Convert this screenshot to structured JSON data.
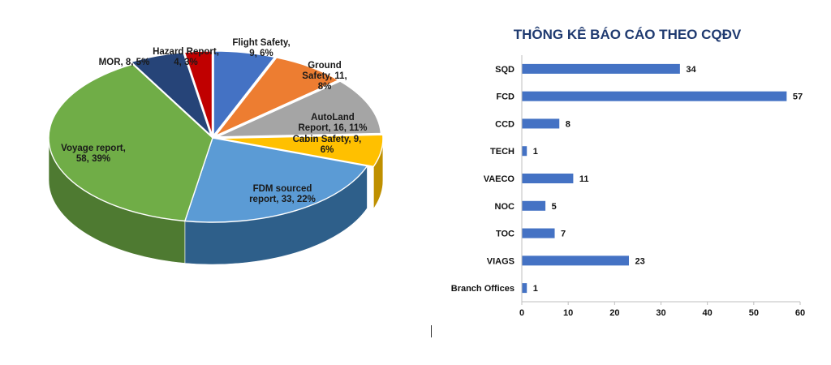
{
  "chart_data": [
    {
      "type": "pie",
      "title": "",
      "slices": [
        {
          "label_lines": [
            "Flight Safety,",
            "9, 6%"
          ],
          "category": "Flight Safety",
          "value": 9,
          "percent": 6,
          "color": "#4472c4",
          "side": "#2f5597"
        },
        {
          "label_lines": [
            "Ground",
            "Safety, 11,",
            "8%"
          ],
          "category": "Ground Safety",
          "value": 11,
          "percent": 8,
          "color": "#ed7d31",
          "side": "#b35a1f"
        },
        {
          "label_lines": [
            "AutoLand",
            "Report, 16, 11%"
          ],
          "category": "AutoLand Report",
          "value": 16,
          "percent": 11,
          "color": "#a5a5a5",
          "side": "#7a7a7a"
        },
        {
          "label_lines": [
            "Cabin Safety, 9,",
            "6%"
          ],
          "category": "Cabin Safety",
          "value": 9,
          "percent": 6,
          "color": "#ffc000",
          "side": "#bf9000"
        },
        {
          "label_lines": [
            "FDM sourced",
            "report, 33, 22%"
          ],
          "category": "FDM sourced report",
          "value": 33,
          "percent": 22,
          "color": "#5b9bd5",
          "side": "#2e5f8a"
        },
        {
          "label_lines": [
            "Voyage report,",
            "58, 39%"
          ],
          "category": "Voyage report",
          "value": 58,
          "percent": 39,
          "color": "#70ad47",
          "side": "#4e7a31"
        },
        {
          "label_lines": [
            "MOR, 8, 5%"
          ],
          "category": "MOR",
          "value": 8,
          "percent": 5,
          "color": "#264478",
          "side": "#1a2f55"
        },
        {
          "label_lines": [
            "Hazard Report,",
            "4, 3%"
          ],
          "category": "Hazard Report",
          "value": 4,
          "percent": 3,
          "color": "#c00000",
          "side": "#8a0000"
        }
      ]
    },
    {
      "type": "bar",
      "orientation": "horizontal",
      "title": "THÔNG KÊ BÁO CÁO THEO CQĐV",
      "categories": [
        "SQD",
        "FCD",
        "CCD",
        "TECH",
        "VAECO",
        "NOC",
        "TOC",
        "VIAGS",
        "Branch Offices"
      ],
      "values": [
        34,
        57,
        8,
        1,
        11,
        5,
        7,
        23,
        1
      ],
      "value_labels": [
        "34",
        "57",
        "8",
        "1",
        "11",
        "5",
        "7",
        "23",
        "1"
      ],
      "xlim": [
        0,
        60
      ],
      "xticks": [
        "0",
        "10",
        "20",
        "30",
        "40",
        "50",
        "60"
      ],
      "bar_color": "#4472c4",
      "grid": false,
      "xlabel": "",
      "ylabel": ""
    }
  ]
}
